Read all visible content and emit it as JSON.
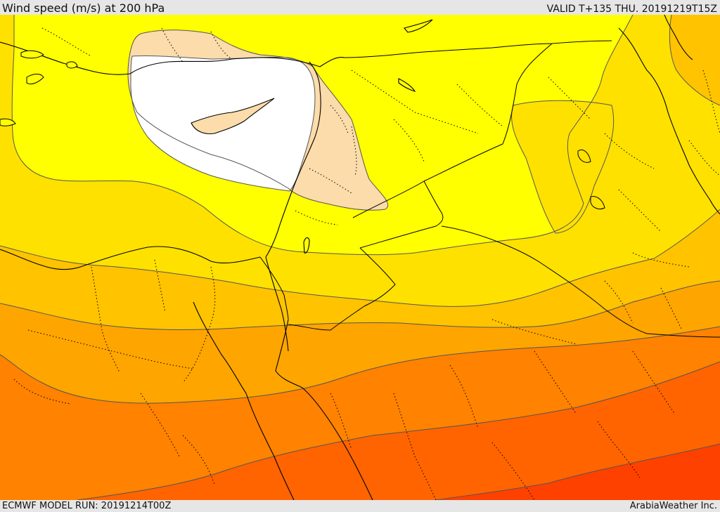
{
  "header": {
    "title": "Wind speed (m/s) at 200 hPa",
    "valid": "VALID T+135 THU. 20191219T15Z"
  },
  "footer": {
    "model_run": "ECMWF MODEL RUN: 20191214T00Z",
    "credit": "ArabiaWeather Inc."
  },
  "map": {
    "colors": {
      "calm_white": "#ffffff",
      "tan": "#fbdcaa",
      "yellow": "#ffff00",
      "gold": "#ffe100",
      "amber": "#ffc300",
      "light_orange": "#ffa500",
      "orange": "#ff8200",
      "dark_orange": "#ff6400",
      "red_orange": "#ff4100",
      "red": "#ff1e00",
      "contour_line": "#555555",
      "coast_line": "#000000"
    }
  }
}
